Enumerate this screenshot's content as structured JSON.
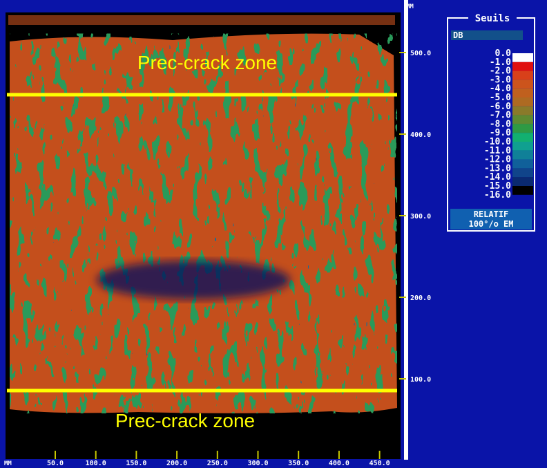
{
  "scan": {
    "annotations": [
      "Prec-crack zone",
      "Prec-crack zone"
    ],
    "y_axis": {
      "unit": "MM",
      "ticks": [
        "500.0",
        "400.0",
        "300.0",
        "200.0",
        "100.0"
      ]
    },
    "x_axis": {
      "unit": "MM",
      "ticks": [
        "50.0",
        "100.0",
        "150.0",
        "200.0",
        "250.0",
        "300.0",
        "350.0",
        "400.0",
        "450.0"
      ]
    }
  },
  "legend": {
    "title": "Seuils",
    "unit": "DB",
    "levels": [
      "0.0",
      "-1.0",
      "-2.0",
      "-3.0",
      "-4.0",
      "-5.0",
      "-6.0",
      "-7.0",
      "-8.0",
      "-9.0",
      "-10.0",
      "-11.0",
      "-12.0",
      "-13.0",
      "-14.0",
      "-15.0",
      "-16.0"
    ],
    "mode": "RELATIF",
    "reference": "100°/o EM"
  }
}
